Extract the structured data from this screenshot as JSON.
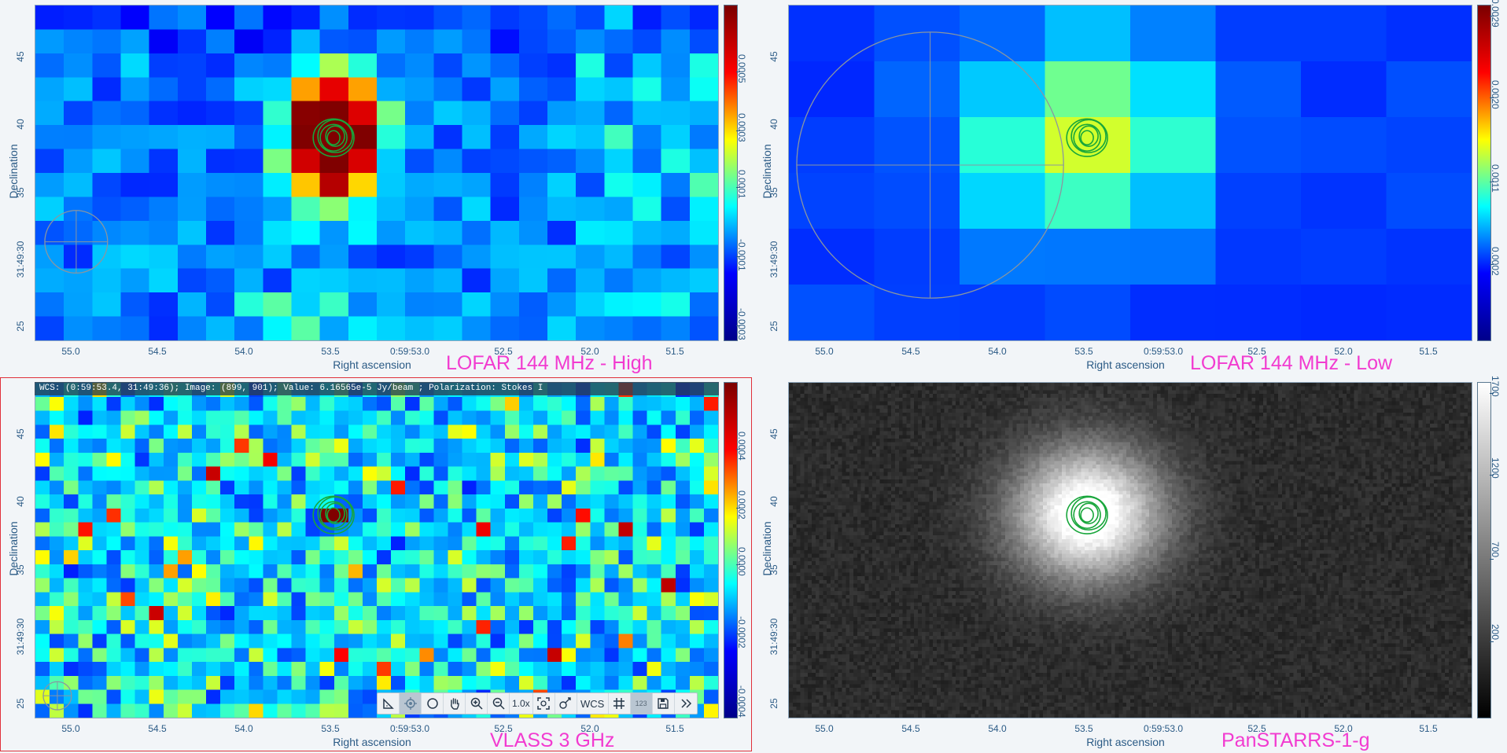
{
  "panels": [
    {
      "title": "LOFAR 144 MHz - High",
      "y_label": "Declination",
      "x_label": "Right ascension",
      "y_ticks": [
        "45",
        "40",
        "35",
        "31:49:30",
        "25"
      ],
      "x_ticks": [
        "55.0",
        "54.5",
        "54.0",
        "53.5",
        "0:59:53.0",
        "52.5",
        "52.0",
        "51.5"
      ],
      "colorbar_ticks": [
        "0.0005",
        "0.0003",
        "0.0001",
        "-0.0001",
        "-0.0003"
      ],
      "colormap": "jet",
      "colorbar_colors": [
        "#7a0000",
        "#ff0000",
        "#ffff00",
        "#00ffff",
        "#0000ff",
        "#00008a"
      ]
    },
    {
      "title": "LOFAR 144 MHz - Low",
      "y_label": "Declination",
      "x_label": "Right ascension",
      "y_ticks": [
        "45",
        "40",
        "35",
        "31:49:30",
        "25"
      ],
      "x_ticks": [
        "55.0",
        "54.5",
        "54.0",
        "53.5",
        "0:59:53.0",
        "52.5",
        "52.0",
        "51.5"
      ],
      "colorbar_ticks": [
        "0.0029",
        "0.0020",
        "0.0011",
        "0.0002"
      ],
      "colormap": "jet",
      "colorbar_colors": [
        "#7a0000",
        "#ff0000",
        "#ffff00",
        "#00ffff",
        "#0000ff",
        "#00008a"
      ]
    },
    {
      "title": "VLASS 3 GHz",
      "y_label": "Declination",
      "x_label": "Right ascension",
      "y_ticks": [
        "45",
        "40",
        "35",
        "31:49:30",
        "25"
      ],
      "x_ticks": [
        "55.0",
        "54.5",
        "54.0",
        "53.5",
        "0:59:53.0",
        "52.5",
        "52.0",
        "51.5"
      ],
      "colorbar_ticks": [
        "0.0004",
        "0.0002",
        "0.0000",
        "-0.0002",
        "-0.0004"
      ],
      "colormap": "jet",
      "colorbar_colors": [
        "#7a0000",
        "#ff0000",
        "#ffff00",
        "#00ffff",
        "#0000ff",
        "#00008a"
      ],
      "cursor_info": "WCS: (0:59:53.4, 31:49:36); Image: (899, 901); Value:  6.16565e-5 Jy/beam ; Polarization: Stokes I",
      "active": true
    },
    {
      "title": "PanSTARRS-1-g",
      "y_label": "Declination",
      "x_label": "Right ascension",
      "y_ticks": [
        "45",
        "40",
        "35",
        "31:49:30",
        "25"
      ],
      "x_ticks": [
        "55.0",
        "54.5",
        "54.0",
        "53.5",
        "0:59:53.0",
        "52.5",
        "52.0",
        "51.5"
      ],
      "colorbar_ticks": [
        "1700",
        "1200",
        "700",
        "200"
      ],
      "colormap": "gray",
      "colorbar_colors": [
        "#ffffff",
        "#000000"
      ]
    }
  ],
  "toolbar": {
    "zoom_level": "1.0x",
    "coord_system": "WCS",
    "value_label": "123",
    "icons": [
      "ruler-icon",
      "crosshair-icon",
      "region-circle-icon",
      "pan-hand-icon",
      "zoom-in-icon",
      "zoom-out-icon",
      "zoom-fit-icon",
      "catalog-icon",
      "grid-icon",
      "save-icon",
      "more-icon"
    ]
  },
  "colors": {
    "contour": "#18a63b",
    "title": "#f23bd0",
    "axis_text": "#2a5a85",
    "active_border": "#e0303a"
  }
}
